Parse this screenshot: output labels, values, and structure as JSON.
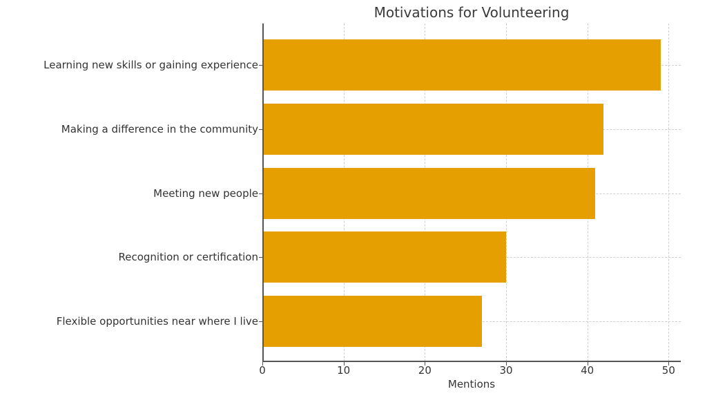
{
  "chart_data": {
    "type": "bar",
    "orientation": "horizontal",
    "title": "Motivations for Volunteering",
    "xlabel": "Mentions",
    "ylabel": "",
    "categories": [
      "Learning new skills or gaining experience",
      "Making a difference in the community",
      "Meeting new people",
      "Recognition or certification",
      "Flexible opportunities near where I live"
    ],
    "values": [
      49,
      42,
      41,
      30,
      27
    ],
    "xlim": [
      0,
      51.5
    ],
    "xticks": [
      "0",
      "10",
      "20",
      "30",
      "40",
      "50"
    ],
    "grid": true,
    "legend": null,
    "bar_color": "#E69F00"
  }
}
